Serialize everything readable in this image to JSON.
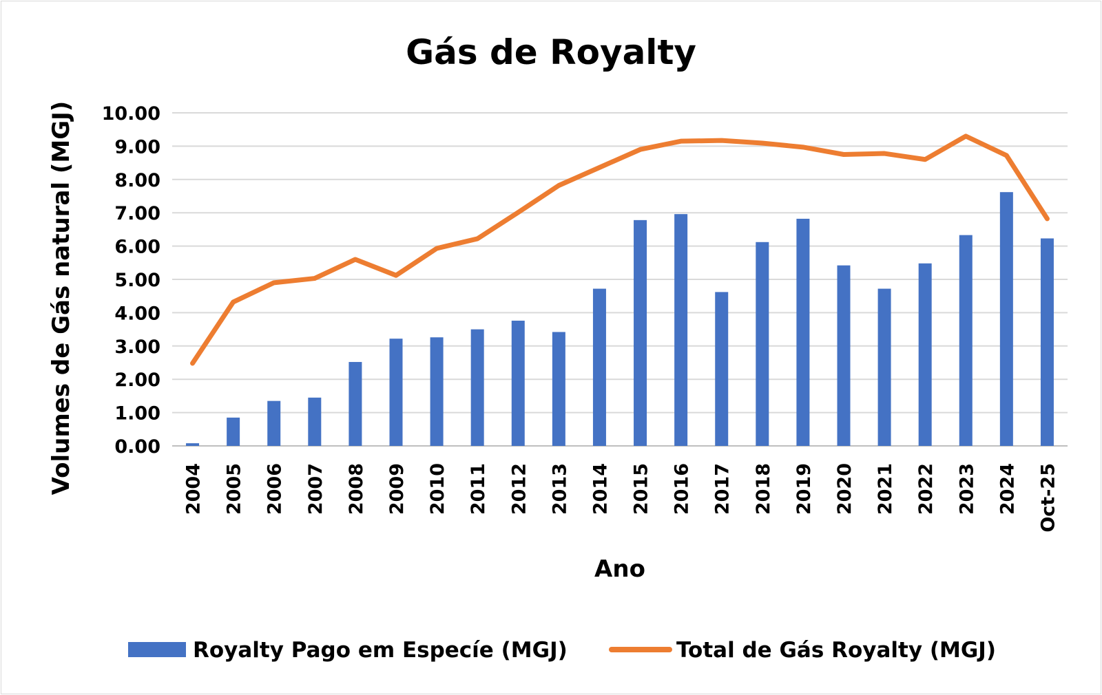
{
  "chart_data": {
    "type": "bar",
    "title": "Gás de Royalty",
    "xlabel": "Ano",
    "ylabel": "Volumes de Gás natural (MGJ)",
    "ylim": [
      0,
      10
    ],
    "y_ticks": [
      "0.00",
      "1.00",
      "2.00",
      "3.00",
      "4.00",
      "5.00",
      "6.00",
      "7.00",
      "8.00",
      "9.00",
      "10.00"
    ],
    "grid": true,
    "legend_position": "bottom",
    "categories": [
      "2004",
      "2005",
      "2006",
      "2007",
      "2008",
      "2009",
      "2010",
      "2011",
      "2012",
      "2013",
      "2014",
      "2015",
      "2016",
      "2017",
      "2018",
      "2019",
      "2020",
      "2021",
      "2022",
      "2023",
      "2024",
      "Oct-25"
    ],
    "series": [
      {
        "name": "Royalty Pago em Especíe (MGJ)",
        "type": "bar",
        "color": "#4472c4",
        "values": [
          0.08,
          0.85,
          1.35,
          1.45,
          2.52,
          3.22,
          3.26,
          3.5,
          3.76,
          3.42,
          4.72,
          6.78,
          6.96,
          4.62,
          6.12,
          6.82,
          5.42,
          4.72,
          5.48,
          6.33,
          7.62,
          6.23
        ]
      },
      {
        "name": "Total de Gás Royalty (MGJ)",
        "type": "line",
        "color": "#ed7d31",
        "values": [
          2.48,
          4.32,
          4.9,
          5.03,
          5.6,
          5.12,
          5.93,
          6.22,
          7.01,
          7.82,
          8.36,
          8.9,
          9.15,
          9.17,
          9.09,
          8.97,
          8.75,
          8.78,
          8.6,
          9.3,
          8.72,
          6.82
        ]
      }
    ]
  }
}
